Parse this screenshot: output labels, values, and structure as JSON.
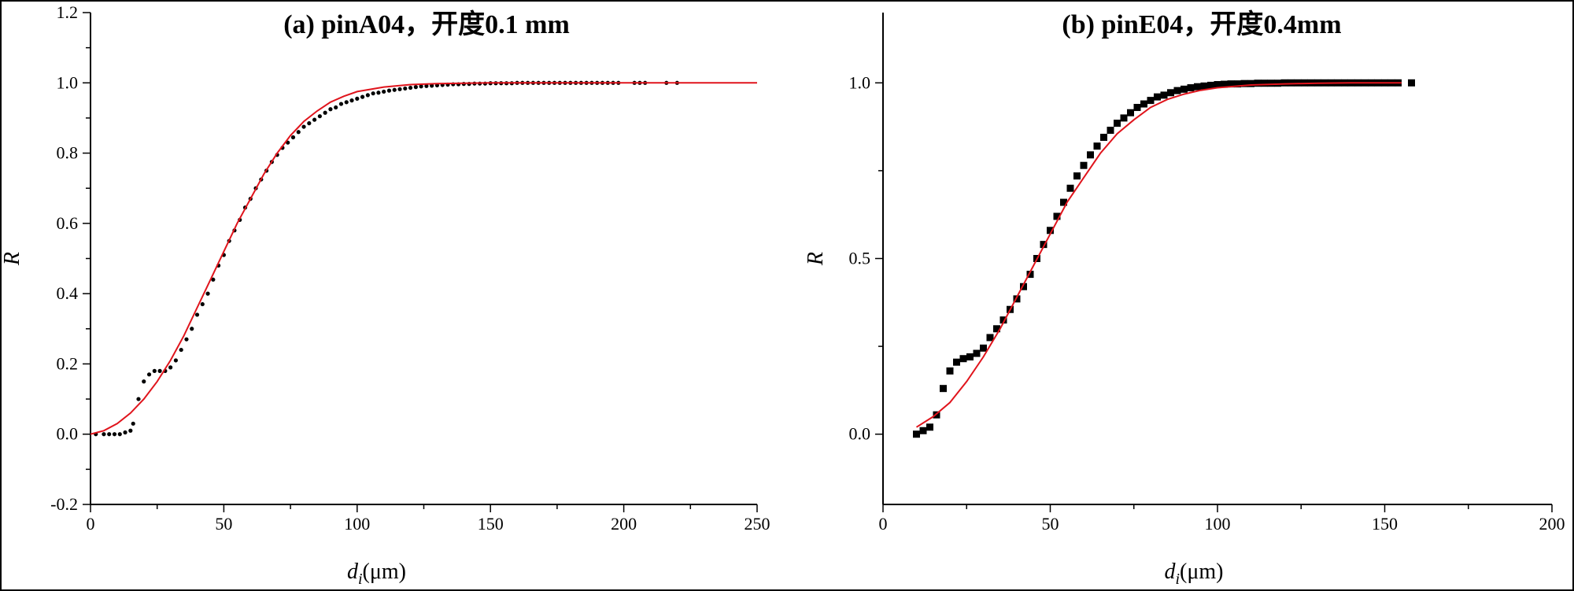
{
  "chart_data": [
    {
      "type": "scatter",
      "title": "(a) pinA04，开度0.1 mm",
      "xlabel": "d",
      "xlabel_sub": "i",
      "xlabel_unit": "(μm)",
      "ylabel": "R",
      "xlim": [
        0,
        250
      ],
      "ylim": [
        -0.2,
        1.2
      ],
      "xticks": [
        "0",
        "50",
        "100",
        "150",
        "200",
        "250"
      ],
      "yticks": [
        "-0.2",
        "0.0",
        "0.2",
        "0.4",
        "0.6",
        "0.8",
        "1.0",
        "1.2"
      ],
      "marker": "dot",
      "colors": {
        "points": "#000000",
        "fit": "#e0141c"
      },
      "series": [
        {
          "kind": "points",
          "x": [
            2,
            5,
            7,
            9,
            11,
            13,
            15,
            16,
            18,
            20,
            22,
            24,
            26,
            28,
            30,
            32,
            34,
            36,
            38,
            40,
            42,
            44,
            46,
            48,
            50,
            52,
            54,
            56,
            58,
            60,
            62,
            64,
            66,
            68,
            70,
            72,
            74,
            76,
            78,
            80,
            82,
            84,
            86,
            88,
            90,
            92,
            94,
            96,
            98,
            100,
            102,
            104,
            106,
            108,
            110,
            112,
            114,
            116,
            118,
            120,
            122,
            124,
            126,
            128,
            130,
            132,
            134,
            136,
            138,
            140,
            142,
            144,
            146,
            148,
            150,
            152,
            154,
            156,
            158,
            160,
            162,
            164,
            166,
            168,
            170,
            172,
            174,
            176,
            178,
            180,
            182,
            184,
            186,
            188,
            190,
            192,
            194,
            196,
            198,
            204,
            206,
            208,
            216,
            220
          ],
          "y": [
            0.0,
            0.0,
            0.0,
            0.0,
            0.0,
            0.005,
            0.01,
            0.03,
            0.1,
            0.15,
            0.17,
            0.18,
            0.18,
            0.18,
            0.19,
            0.21,
            0.24,
            0.27,
            0.3,
            0.34,
            0.37,
            0.4,
            0.44,
            0.48,
            0.51,
            0.55,
            0.58,
            0.61,
            0.645,
            0.67,
            0.7,
            0.725,
            0.75,
            0.775,
            0.795,
            0.815,
            0.83,
            0.845,
            0.86,
            0.875,
            0.885,
            0.895,
            0.905,
            0.915,
            0.925,
            0.93,
            0.94,
            0.945,
            0.95,
            0.955,
            0.96,
            0.965,
            0.97,
            0.972,
            0.975,
            0.978,
            0.98,
            0.982,
            0.984,
            0.986,
            0.988,
            0.99,
            0.991,
            0.992,
            0.993,
            0.994,
            0.995,
            0.996,
            0.996,
            0.997,
            0.997,
            0.998,
            0.998,
            0.998,
            0.999,
            0.999,
            0.999,
            0.999,
            0.999,
            1.0,
            1.0,
            1.0,
            1.0,
            1.0,
            1.0,
            1.0,
            1.0,
            1.0,
            1.0,
            1.0,
            1.0,
            1.0,
            1.0,
            1.0,
            1.0,
            1.0,
            1.0,
            1.0,
            1.0,
            1.0,
            1.0,
            1.0,
            1.0,
            1.0
          ]
        },
        {
          "kind": "fit",
          "x": [
            0,
            5,
            10,
            15,
            20,
            25,
            30,
            35,
            40,
            45,
            50,
            55,
            60,
            65,
            70,
            75,
            80,
            85,
            90,
            95,
            100,
            110,
            120,
            130,
            140,
            150,
            175,
            200,
            225,
            250
          ],
          "y": [
            0.0,
            0.01,
            0.03,
            0.06,
            0.1,
            0.15,
            0.21,
            0.28,
            0.36,
            0.44,
            0.52,
            0.6,
            0.67,
            0.74,
            0.8,
            0.85,
            0.89,
            0.92,
            0.945,
            0.962,
            0.975,
            0.988,
            0.995,
            0.998,
            0.999,
            1.0,
            1.0,
            1.0,
            1.0,
            1.0
          ]
        }
      ]
    },
    {
      "type": "scatter",
      "title": "(b) pinE04，开度0.4mm",
      "xlabel": "d",
      "xlabel_sub": "i",
      "xlabel_unit": "(μm)",
      "ylabel": "R",
      "xlim": [
        0,
        200
      ],
      "ylim": [
        -0.2,
        1.2
      ],
      "xticks": [
        "0",
        "50",
        "100",
        "150",
        "200"
      ],
      "yticks": [
        "0.0",
        "0.5",
        "1.0"
      ],
      "marker": "square",
      "colors": {
        "points": "#000000",
        "fit": "#e0141c"
      },
      "series": [
        {
          "kind": "points",
          "x": [
            10,
            12,
            14,
            16,
            18,
            20,
            22,
            24,
            26,
            28,
            30,
            32,
            34,
            36,
            38,
            40,
            42,
            44,
            46,
            48,
            50,
            52,
            54,
            56,
            58,
            60,
            62,
            64,
            66,
            68,
            70,
            72,
            74,
            76,
            78,
            80,
            82,
            84,
            86,
            88,
            90,
            92,
            94,
            96,
            98,
            100,
            102,
            104,
            106,
            108,
            110,
            112,
            114,
            116,
            118,
            120,
            122,
            124,
            126,
            128,
            130,
            132,
            134,
            136,
            138,
            140,
            142,
            144,
            146,
            148,
            150,
            152,
            154,
            158
          ],
          "y": [
            0.0,
            0.01,
            0.02,
            0.055,
            0.13,
            0.18,
            0.205,
            0.215,
            0.22,
            0.23,
            0.245,
            0.275,
            0.3,
            0.325,
            0.355,
            0.385,
            0.42,
            0.455,
            0.5,
            0.54,
            0.58,
            0.62,
            0.66,
            0.7,
            0.735,
            0.765,
            0.795,
            0.82,
            0.845,
            0.865,
            0.885,
            0.9,
            0.915,
            0.93,
            0.94,
            0.95,
            0.96,
            0.965,
            0.972,
            0.978,
            0.982,
            0.986,
            0.989,
            0.991,
            0.993,
            0.995,
            0.996,
            0.997,
            0.997,
            0.998,
            0.998,
            0.999,
            0.999,
            0.999,
            0.999,
            1.0,
            1.0,
            1.0,
            1.0,
            1.0,
            1.0,
            1.0,
            1.0,
            1.0,
            1.0,
            1.0,
            1.0,
            1.0,
            1.0,
            1.0,
            1.0,
            1.0,
            1.0,
            1.0
          ]
        },
        {
          "kind": "fit",
          "x": [
            10,
            15,
            20,
            25,
            30,
            35,
            40,
            45,
            50,
            55,
            60,
            65,
            70,
            75,
            80,
            85,
            90,
            95,
            100,
            110,
            120,
            130,
            140,
            150,
            155
          ],
          "y": [
            0.02,
            0.05,
            0.09,
            0.15,
            0.22,
            0.3,
            0.39,
            0.48,
            0.57,
            0.66,
            0.73,
            0.8,
            0.855,
            0.895,
            0.93,
            0.953,
            0.968,
            0.979,
            0.986,
            0.994,
            0.997,
            0.999,
            1.0,
            1.0,
            1.0
          ]
        }
      ]
    }
  ]
}
